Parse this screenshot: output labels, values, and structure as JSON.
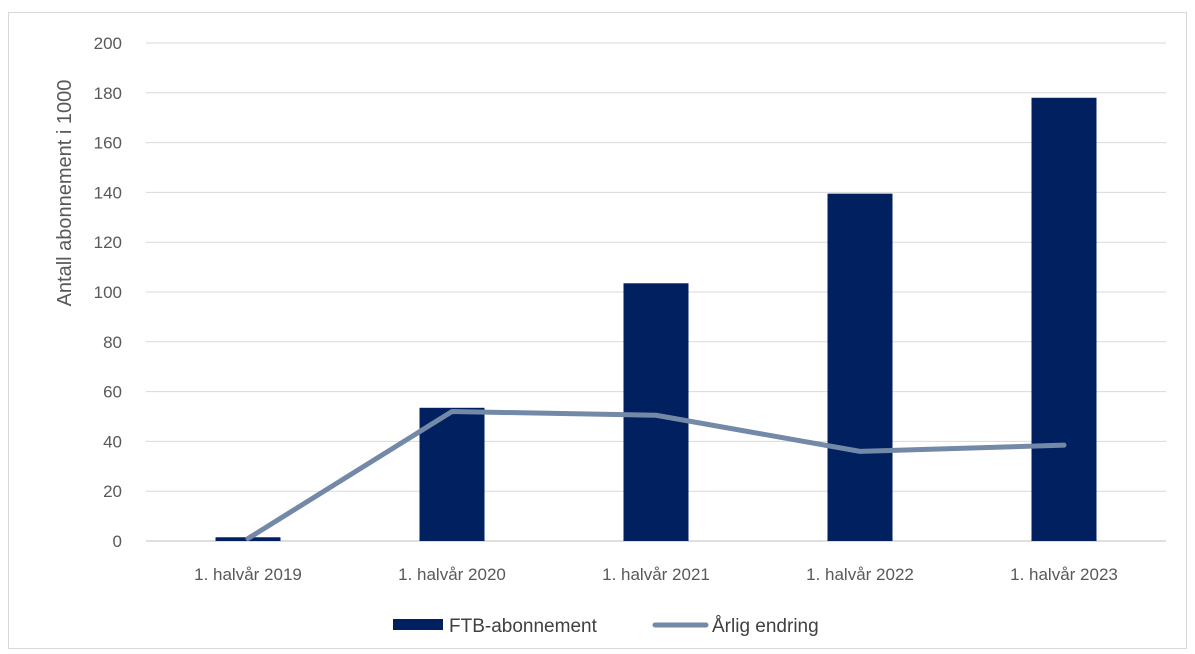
{
  "chart_data": {
    "type": "bar",
    "categories": [
      "1. halvår 2019",
      "1. halvår 2020",
      "1. halvår 2021",
      "1. halvår 2022",
      "1. halvår 2023"
    ],
    "series": [
      {
        "name": "FTB-abonnement",
        "type": "bar",
        "color": "#002060",
        "values": [
          1.5,
          53.5,
          103.5,
          139.5,
          178
        ]
      },
      {
        "name": "Årlig endring",
        "type": "line",
        "color": "#7489A8",
        "values": [
          1,
          52,
          50.5,
          36,
          38.5
        ]
      }
    ],
    "title": "",
    "xlabel": "",
    "ylabel": "Antall abonnement i 1000",
    "ylim": [
      0,
      200
    ],
    "yticks": [
      0,
      20,
      40,
      60,
      80,
      100,
      120,
      140,
      160,
      180,
      200
    ],
    "grid": true,
    "legend": "bottom-center"
  }
}
